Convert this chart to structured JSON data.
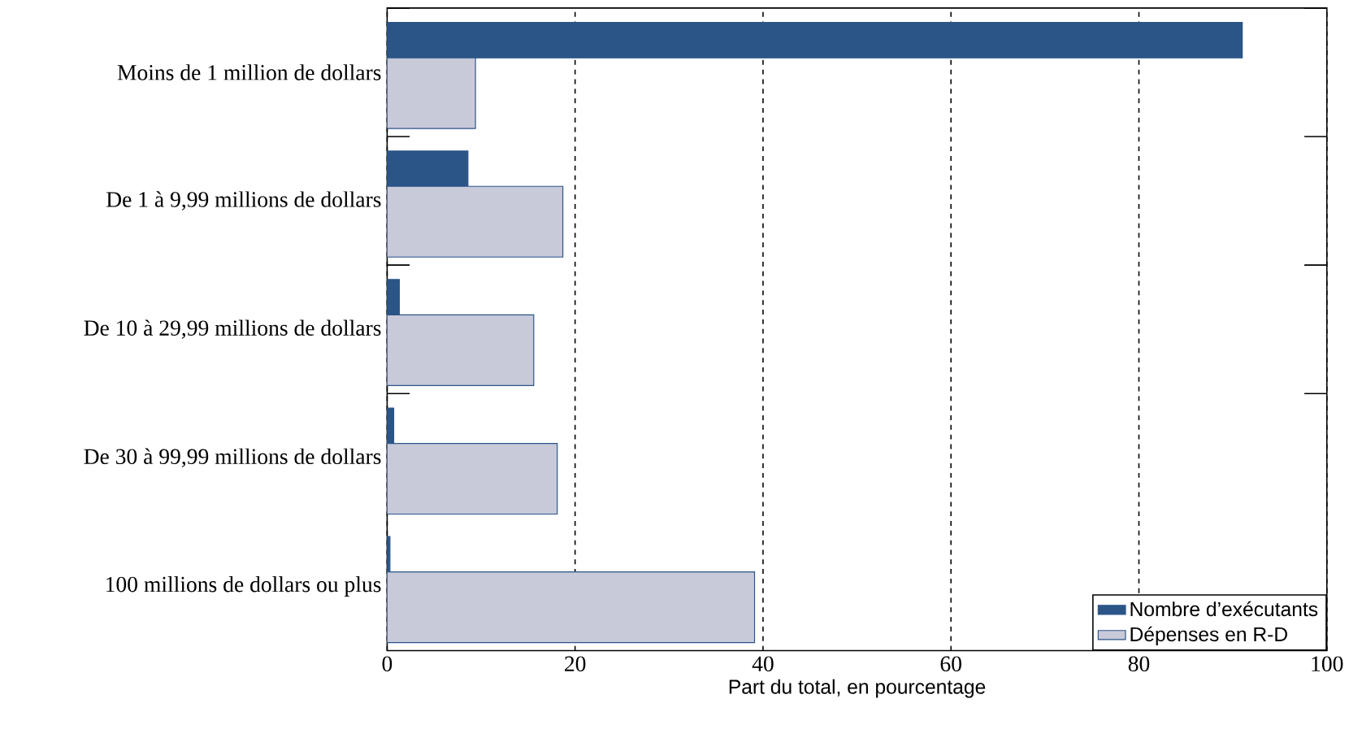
{
  "chart_data": {
    "type": "bar",
    "orientation": "horizontal",
    "xlabel": "Part du total, en pourcentage",
    "categories": [
      "Moins de 1 million de dollars",
      "De 1 à 9,99 millions de dollars",
      "De 10 à 29,99 millions de dollars",
      "De 30 à 99,99 millions de dollars",
      "100 millions de dollars ou plus"
    ],
    "series": [
      {
        "name": "Nombre d’exécutants",
        "color": "#2b5587",
        "values": [
          91,
          8.6,
          1.3,
          0.7,
          0.3
        ]
      },
      {
        "name": "Dépenses en R-D",
        "color": "#c8c9d9",
        "values": [
          9.4,
          18.7,
          15.6,
          18.1,
          39.1
        ]
      }
    ],
    "xlim": [
      0,
      100
    ],
    "xticks": [
      0,
      20,
      40,
      60,
      80,
      100
    ],
    "grid": "x",
    "legend": "bottom right"
  }
}
